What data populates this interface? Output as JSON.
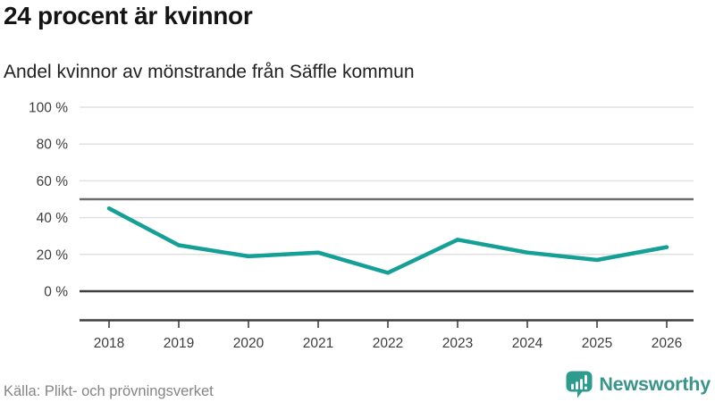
{
  "header": {
    "title": "24 procent är kvinnor",
    "subtitle": "Andel kvinnor av mönstrande från Säffle kommun"
  },
  "chart_data": {
    "type": "line",
    "title": "24 procent är kvinnor",
    "subtitle": "Andel kvinnor av mönstrande från Säffle kommun",
    "x": [
      2018,
      2019,
      2020,
      2021,
      2022,
      2023,
      2024,
      2025,
      2026
    ],
    "series": [
      {
        "name": "Andel kvinnor",
        "values": [
          45,
          25,
          19,
          21,
          10,
          28,
          21,
          17,
          24
        ]
      }
    ],
    "ylim": [
      0,
      100
    ],
    "yticks": [
      0,
      20,
      40,
      60,
      80,
      100
    ],
    "ytick_suffix": " %",
    "baseline_y": 0,
    "reference_line_y": 50,
    "grid": "horizontal",
    "legend": "none",
    "line_color": "#14a096",
    "grid_color": "#e0e0e0",
    "axis_color": "#3f3f3f",
    "reference_line_color": "#6d6d6d",
    "tick_label_color": "#3d3d3d"
  },
  "footer": {
    "source": "Källa: Plikt- och prövningsverket",
    "brand_name": "Newsworthy",
    "brand_color": "#39948a",
    "brand_icon_color": "#2d9c8f",
    "brand_icon": "bar-chart-speech-bubble"
  }
}
